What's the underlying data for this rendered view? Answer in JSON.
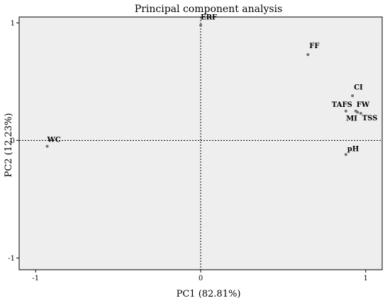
{
  "chart_data": {
    "type": "scatter",
    "title": "Principal component analysis",
    "xlabel": "PC1 (82.81%)",
    "ylabel": "PC2 (12.23%)",
    "xlim": [
      -1.1,
      1.1
    ],
    "ylim": [
      -1.1,
      1.05
    ],
    "x_ticks": [
      {
        "value": -1,
        "label": "-1"
      },
      {
        "value": 0,
        "label": "0"
      },
      {
        "value": 1,
        "label": "1"
      }
    ],
    "y_ticks": [
      {
        "value": -1,
        "label": "-1"
      },
      {
        "value": 0,
        "label": "0"
      },
      {
        "value": 1,
        "label": "1"
      }
    ],
    "reference_lines": {
      "x": 0,
      "y": 0,
      "style": "dotted"
    },
    "grid": false,
    "background_color": "#eeeeee",
    "point_color": "#707070",
    "points": [
      {
        "label": "ERF",
        "x": 0.0,
        "y": 0.98
      },
      {
        "label": "FF",
        "x": 0.65,
        "y": 0.73
      },
      {
        "label": "CI",
        "x": 0.92,
        "y": 0.38
      },
      {
        "label": "TAFS",
        "x": 0.88,
        "y": 0.25
      },
      {
        "label": "FW",
        "x": 0.94,
        "y": 0.25
      },
      {
        "label": "MI",
        "x": 0.95,
        "y": 0.24
      },
      {
        "label": "TSS",
        "x": 0.97,
        "y": 0.23
      },
      {
        "label": "WC",
        "x": -0.93,
        "y": -0.05
      },
      {
        "label": "pH",
        "x": 0.88,
        "y": -0.12
      }
    ]
  }
}
